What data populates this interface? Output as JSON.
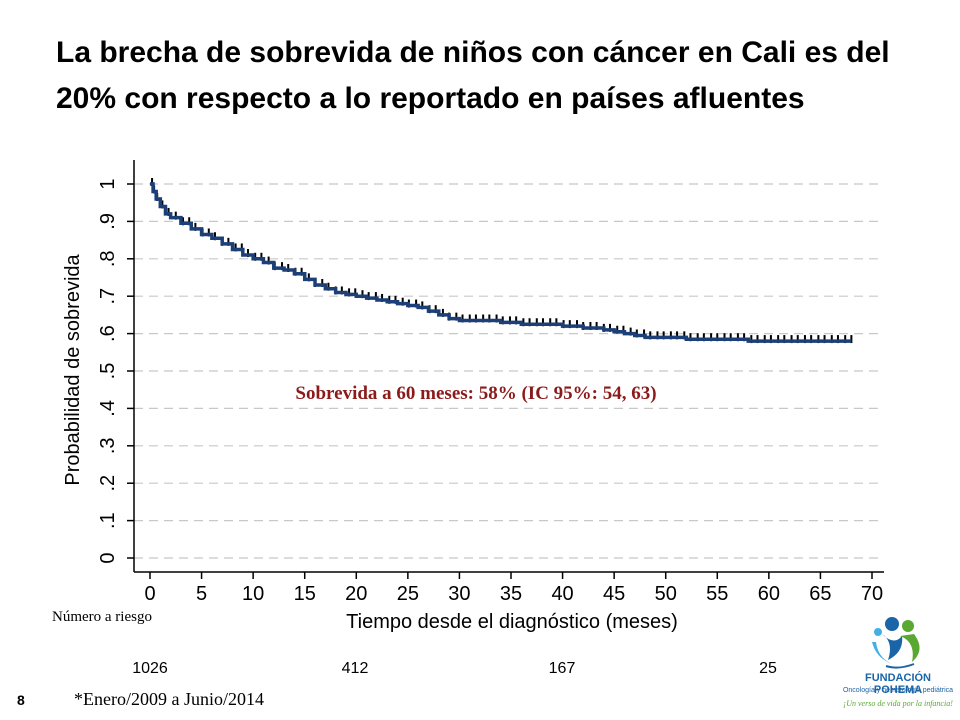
{
  "slide": {
    "title_line1": "La brecha de sobrevida de niños con cáncer en Cali es del",
    "title_line2": "20% con respecto a lo reportado en países afluentes",
    "slide_number": "8",
    "footnote": "*Enero/2009  a Junio/2014"
  },
  "risk_table": {
    "label": "Número a riesgo",
    "entries": [
      {
        "time": 0,
        "count": "1026"
      },
      {
        "time": 20,
        "count": "412"
      },
      {
        "time": 40,
        "count": "167"
      },
      {
        "time": 60,
        "count": "25"
      }
    ]
  },
  "logo": {
    "name": "FUNDACIÓN POHEMA",
    "subtitle": "Oncología y hematología pediátrica",
    "tagline": "¡Un verso de vida por la infancia!",
    "colors": {
      "blue": "#1a64a8",
      "green": "#5aa832",
      "light_blue": "#41b0e3"
    }
  },
  "chart_data": {
    "type": "line",
    "xlabel": "Tiempo desde el diagnóstico (meses)",
    "ylabel": "Probabilidad de sobrevida",
    "xlim": [
      0,
      70
    ],
    "ylim": [
      0,
      1
    ],
    "x_ticks": [
      0,
      5,
      10,
      15,
      20,
      25,
      30,
      35,
      40,
      45,
      50,
      55,
      60,
      65,
      70
    ],
    "y_ticks": [
      0,
      0.1,
      0.2,
      0.3,
      0.4,
      0.5,
      0.6,
      0.7,
      0.8,
      0.9,
      1
    ],
    "y_tick_labels": [
      "0",
      ".1",
      ".2",
      ".3",
      ".4",
      ".5",
      ".6",
      ".7",
      ".8",
      ".9",
      "1"
    ],
    "grid": true,
    "annotation": "Sobrevida a 60 meses: 58% (IC 95%: 54, 63)",
    "annotation_color": "#8b1a1a",
    "line_color": "#1c3f78",
    "series": [
      {
        "x": [
          0,
          0.3,
          0.6,
          1,
          1.5,
          2,
          3,
          4,
          5,
          6,
          7,
          8,
          9,
          10,
          11,
          12,
          13,
          14,
          15,
          16,
          17,
          18,
          19,
          20,
          21,
          22,
          23,
          24,
          25,
          26,
          27,
          28,
          29,
          30,
          32,
          34,
          36,
          38,
          40,
          42,
          44,
          45,
          46,
          47,
          48,
          50,
          52,
          55,
          58,
          60,
          62,
          65,
          68
        ],
        "y": [
          1.0,
          0.98,
          0.96,
          0.94,
          0.92,
          0.91,
          0.895,
          0.88,
          0.865,
          0.855,
          0.84,
          0.825,
          0.81,
          0.8,
          0.79,
          0.775,
          0.77,
          0.76,
          0.745,
          0.73,
          0.72,
          0.71,
          0.705,
          0.7,
          0.695,
          0.69,
          0.685,
          0.68,
          0.675,
          0.67,
          0.66,
          0.65,
          0.64,
          0.635,
          0.635,
          0.63,
          0.625,
          0.625,
          0.62,
          0.615,
          0.61,
          0.605,
          0.6,
          0.595,
          0.59,
          0.59,
          0.585,
          0.585,
          0.58,
          0.58,
          0.58,
          0.58,
          0.58
        ]
      }
    ],
    "censor_x": [
      0.2,
      0.4,
      0.7,
      1.2,
      1.8,
      2.5,
      3.2,
      3.8,
      4.4,
      5.1,
      5.7,
      6.3,
      7.0,
      7.6,
      8.3,
      8.9,
      9.5,
      10.2,
      10.8,
      11.5,
      12.1,
      12.8,
      13.4,
      14.1,
      14.7,
      15.4,
      16.0,
      16.7,
      17.3,
      18.0,
      18.6,
      19.3,
      19.9,
      20.6,
      21.2,
      21.9,
      22.5,
      23.2,
      23.8,
      24.5,
      25.1,
      25.8,
      26.4,
      27.1,
      27.7,
      28.4,
      29.0,
      29.7,
      30.3,
      31.0,
      31.6,
      32.3,
      32.9,
      33.6,
      34.2,
      34.9,
      35.5,
      36.2,
      36.8,
      37.5,
      38.1,
      38.8,
      39.4,
      40.1,
      40.7,
      41.4,
      42.0,
      42.7,
      43.3,
      44.0,
      44.6,
      45.3,
      45.9,
      46.6,
      47.2,
      47.9,
      48.5,
      49.2,
      49.8,
      50.5,
      51.1,
      51.8,
      52.4,
      53.1,
      53.7,
      54.4,
      55.0,
      55.7,
      56.3,
      57.0,
      57.6,
      58.3,
      58.9,
      59.6,
      60.2,
      60.9,
      61.5,
      62.2,
      62.8,
      63.5,
      64.1,
      64.8,
      65.4,
      66.1,
      66.7,
      67.4,
      68.0
    ]
  }
}
